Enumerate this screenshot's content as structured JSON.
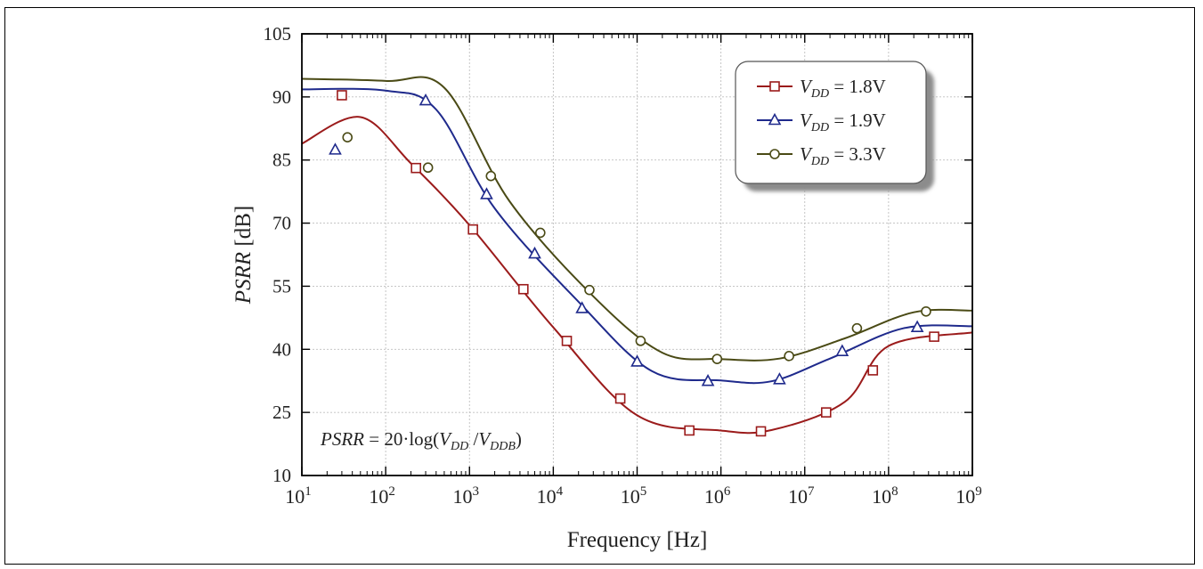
{
  "chart_data": {
    "type": "line",
    "xlabel": "Frequency [Hz]",
    "ylabel": "PSRR [dB]",
    "xscale": "log",
    "xlim": [
      10,
      1000000000
    ],
    "ylim": [
      10,
      105
    ],
    "x_ticks": [
      1,
      2,
      3,
      4,
      5,
      6,
      7,
      8,
      9
    ],
    "y_ticks": [
      10,
      25,
      40,
      55,
      70,
      85,
      90,
      105
    ],
    "grid": true,
    "legend_position": "top-right",
    "annotation": "PSRR = 20·log(VDD/VDDB)",
    "series": [
      {
        "name": "VDD = 1.8V",
        "marker": "square",
        "color": "#9b1b1b",
        "curve": [
          [
            10,
            86.3
          ],
          [
            50,
            88.4
          ],
          [
            200,
            84.2
          ],
          [
            1000,
            69.5
          ],
          [
            10000,
            45.2
          ],
          [
            100000,
            24.3
          ],
          [
            1000000,
            20.7
          ],
          [
            4000000,
            20.8
          ],
          [
            30000000,
            27.5
          ],
          [
            100000000,
            40.8
          ],
          [
            1000000000,
            44
          ]
        ],
        "marker_points": [
          [
            30,
            90.4
          ],
          [
            230,
            83.1
          ],
          [
            1100,
            68.5
          ],
          [
            4400,
            54.3
          ],
          [
            14500,
            42
          ],
          [
            63000,
            28.3
          ],
          [
            420000,
            20.7
          ],
          [
            3000000,
            20.5
          ],
          [
            18000000,
            25
          ],
          [
            65000000,
            35
          ],
          [
            350000000,
            43
          ]
        ]
      },
      {
        "name": "VDD = 1.9V",
        "marker": "triangle",
        "color": "#1f2a8c",
        "curve": [
          [
            10,
            91.8
          ],
          [
            100,
            91.5
          ],
          [
            400,
            89
          ],
          [
            2000,
            73.5
          ],
          [
            20000,
            51.3
          ],
          [
            150000,
            34.8
          ],
          [
            1000000,
            32.6
          ],
          [
            4000000,
            32.4
          ],
          [
            20000000,
            37.8
          ],
          [
            150000000,
            45
          ],
          [
            1000000000,
            45.5
          ]
        ],
        "marker_points": [
          [
            25,
            85.8
          ],
          [
            300,
            89.7
          ],
          [
            1600,
            76.8
          ],
          [
            6000,
            62.7
          ],
          [
            22000,
            49.7
          ],
          [
            100000,
            37
          ],
          [
            700000,
            32.4
          ],
          [
            5000000,
            32.8
          ],
          [
            28000000,
            39.5
          ],
          [
            220000000,
            45.2
          ]
        ]
      },
      {
        "name": "VDD = 3.3V",
        "marker": "circle",
        "color": "#4a4a15",
        "curve": [
          [
            10,
            94.3
          ],
          [
            100,
            93.8
          ],
          [
            500,
            92.2
          ],
          [
            3000,
            75.2
          ],
          [
            30000,
            52.6
          ],
          [
            200000,
            39.2
          ],
          [
            1000000,
            37.7
          ],
          [
            5000000,
            37.8
          ],
          [
            30000000,
            42.6
          ],
          [
            200000000,
            48.8
          ],
          [
            1000000000,
            49.2
          ]
        ],
        "marker_points": [
          [
            35,
            86.8
          ],
          [
            320,
            83.2
          ],
          [
            1800,
            81.2
          ],
          [
            7000,
            67.7
          ],
          [
            27000,
            54.1
          ],
          [
            110000,
            42
          ],
          [
            900000,
            37.7
          ],
          [
            6500000,
            38.4
          ],
          [
            42000000,
            45
          ],
          [
            280000000,
            49
          ]
        ]
      }
    ]
  }
}
